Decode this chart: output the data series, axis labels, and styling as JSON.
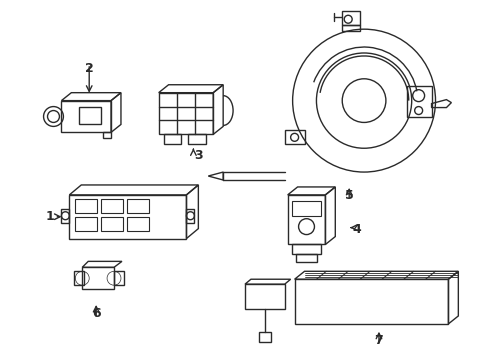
{
  "background_color": "#ffffff",
  "line_color": "#2a2a2a",
  "lw": 1.0,
  "fig_width": 4.89,
  "fig_height": 3.6,
  "dpi": 100
}
